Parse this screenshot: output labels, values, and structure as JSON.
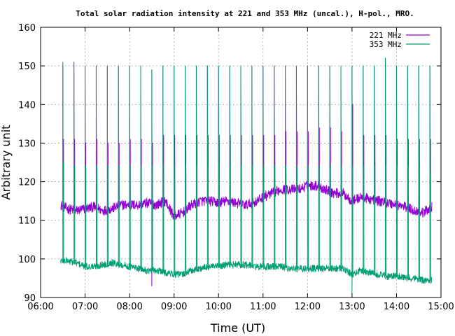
{
  "chart_data": {
    "type": "line",
    "title": "Total solar radiation intensity at 221 and 353 MHz (uncal.), H-pol., MRO.",
    "xlabel": "Time (UT)",
    "ylabel": "Arbitrary unit",
    "x_ticks": [
      "06:00",
      "07:00",
      "08:00",
      "09:00",
      "10:00",
      "11:00",
      "12:00",
      "13:00",
      "14:00",
      "15:00"
    ],
    "y_ticks": [
      90,
      100,
      110,
      120,
      130,
      140,
      150,
      160
    ],
    "xlim_hours": [
      6.0,
      15.0
    ],
    "ylim": [
      90,
      160
    ],
    "grid": true,
    "legend_position": "top-right",
    "series": [
      {
        "name": "221 MHz",
        "color": "#9400d3",
        "baseline": [
          [
            6.45,
            114
          ],
          [
            6.6,
            113
          ],
          [
            6.8,
            112.5
          ],
          [
            7.0,
            113
          ],
          [
            7.2,
            113.5
          ],
          [
            7.4,
            112.5
          ],
          [
            7.6,
            113
          ],
          [
            7.8,
            114
          ],
          [
            8.0,
            114
          ],
          [
            8.2,
            114
          ],
          [
            8.4,
            114.5
          ],
          [
            8.6,
            114
          ],
          [
            8.8,
            115
          ],
          [
            9.0,
            111
          ],
          [
            9.2,
            112
          ],
          [
            9.4,
            114
          ],
          [
            9.6,
            115
          ],
          [
            9.8,
            115
          ],
          [
            10.0,
            114.5
          ],
          [
            10.2,
            115
          ],
          [
            10.4,
            114.5
          ],
          [
            10.6,
            114
          ],
          [
            10.8,
            114.5
          ],
          [
            11.0,
            116
          ],
          [
            11.2,
            117
          ],
          [
            11.4,
            118
          ],
          [
            11.6,
            118
          ],
          [
            11.8,
            118
          ],
          [
            12.0,
            119
          ],
          [
            12.2,
            119
          ],
          [
            12.4,
            118
          ],
          [
            12.6,
            117
          ],
          [
            12.8,
            117
          ],
          [
            13.0,
            115
          ],
          [
            13.2,
            116
          ],
          [
            13.4,
            115.5
          ],
          [
            13.6,
            115
          ],
          [
            13.8,
            114.5
          ],
          [
            14.0,
            114
          ],
          [
            14.2,
            113.5
          ],
          [
            14.4,
            112.5
          ],
          [
            14.6,
            112
          ],
          [
            14.8,
            113.5
          ]
        ],
        "calibration_pulses": [
          {
            "t": 6.5,
            "high": 131,
            "low": 125,
            "peak": 150
          },
          {
            "t": 6.75,
            "high": 131,
            "low": 124,
            "peak": 151
          },
          {
            "t": 7.0,
            "high": 130,
            "low": 124,
            "peak": 150
          },
          {
            "t": 7.25,
            "high": 131,
            "low": 124,
            "peak": 150
          },
          {
            "t": 7.5,
            "high": 130,
            "low": 124,
            "peak": 150
          },
          {
            "t": 7.75,
            "high": 130,
            "low": 124,
            "peak": 150
          },
          {
            "t": 8.0,
            "high": 131,
            "low": 124,
            "peak": 150
          },
          {
            "t": 8.25,
            "high": 131,
            "low": 124,
            "peak": 150
          },
          {
            "t": 8.5,
            "high": 130,
            "low": 122,
            "peak": 149
          },
          {
            "t": 8.75,
            "high": 132,
            "low": 124,
            "peak": 150
          },
          {
            "t": 9.0,
            "high": 132,
            "low": 124,
            "peak": 150
          },
          {
            "t": 9.25,
            "high": 132,
            "low": 124,
            "peak": 150
          },
          {
            "t": 9.5,
            "high": 132,
            "low": 124,
            "peak": 150
          },
          {
            "t": 9.75,
            "high": 132,
            "low": 124,
            "peak": 150
          },
          {
            "t": 10.0,
            "high": 132,
            "low": 124,
            "peak": 150
          },
          {
            "t": 10.25,
            "high": 132,
            "low": 124,
            "peak": 150
          },
          {
            "t": 10.5,
            "high": 132,
            "low": 124,
            "peak": 150
          },
          {
            "t": 10.75,
            "high": 132,
            "low": 124,
            "peak": 150
          },
          {
            "t": 11.0,
            "high": 132,
            "low": 124,
            "peak": 150
          },
          {
            "t": 11.25,
            "high": 132,
            "low": 124,
            "peak": 150
          },
          {
            "t": 11.5,
            "high": 133,
            "low": 124,
            "peak": 150
          },
          {
            "t": 11.75,
            "high": 133,
            "low": 124,
            "peak": 150
          },
          {
            "t": 12.0,
            "high": 133,
            "low": 124,
            "peak": 150
          },
          {
            "t": 12.25,
            "high": 134,
            "low": 124,
            "peak": 150
          },
          {
            "t": 12.5,
            "high": 134,
            "low": 124,
            "peak": 150
          },
          {
            "t": 12.75,
            "high": 133,
            "low": 124,
            "peak": 150
          },
          {
            "t": 13.0,
            "high": 140,
            "low": 124,
            "peak": 150
          },
          {
            "t": 13.25,
            "high": 132,
            "low": 124,
            "peak": 150
          },
          {
            "t": 13.5,
            "high": 132,
            "low": 124,
            "peak": 150
          },
          {
            "t": 13.75,
            "high": 132,
            "low": 124,
            "peak": 152
          },
          {
            "t": 14.0,
            "high": 131,
            "low": 124,
            "peak": 150
          },
          {
            "t": 14.25,
            "high": 131,
            "low": 124,
            "peak": 150
          },
          {
            "t": 14.5,
            "high": 131,
            "low": 124,
            "peak": 150
          },
          {
            "t": 14.75,
            "high": 131,
            "low": 122,
            "peak": 150
          }
        ],
        "dips": [
          [
            8.5,
            93
          ]
        ]
      },
      {
        "name": "353 MHz",
        "color": "#009e73",
        "baseline": [
          [
            6.45,
            99.5
          ],
          [
            6.6,
            99.5
          ],
          [
            6.8,
            99
          ],
          [
            7.0,
            98
          ],
          [
            7.2,
            98
          ],
          [
            7.4,
            98.5
          ],
          [
            7.6,
            99
          ],
          [
            7.8,
            98.5
          ],
          [
            8.0,
            98
          ],
          [
            8.2,
            97.5
          ],
          [
            8.4,
            97
          ],
          [
            8.6,
            97
          ],
          [
            8.8,
            96.5
          ],
          [
            9.0,
            96
          ],
          [
            9.2,
            96
          ],
          [
            9.4,
            97
          ],
          [
            9.6,
            97.5
          ],
          [
            9.8,
            98
          ],
          [
            10.0,
            98
          ],
          [
            10.2,
            98.5
          ],
          [
            10.4,
            98.5
          ],
          [
            10.6,
            98.5
          ],
          [
            10.8,
            98
          ],
          [
            11.0,
            98
          ],
          [
            11.2,
            98
          ],
          [
            11.4,
            98
          ],
          [
            11.6,
            97.5
          ],
          [
            11.8,
            97.5
          ],
          [
            12.0,
            97.5
          ],
          [
            12.2,
            97.5
          ],
          [
            12.4,
            97.5
          ],
          [
            12.6,
            97.5
          ],
          [
            12.8,
            97.5
          ],
          [
            13.0,
            96
          ],
          [
            13.2,
            97
          ],
          [
            13.4,
            96.5
          ],
          [
            13.6,
            96
          ],
          [
            13.8,
            95.5
          ],
          [
            14.0,
            95.5
          ],
          [
            14.2,
            95
          ],
          [
            14.4,
            95
          ],
          [
            14.6,
            94.5
          ],
          [
            14.8,
            94.5
          ]
        ],
        "calibration_pulses": [
          {
            "t": 6.5,
            "high": 125,
            "peak": 151
          },
          {
            "t": 6.75,
            "high": 124,
            "peak": 150
          },
          {
            "t": 7.0,
            "high": 124,
            "peak": 150
          },
          {
            "t": 7.25,
            "high": 124,
            "peak": 150
          },
          {
            "t": 7.5,
            "high": 124,
            "peak": 150
          },
          {
            "t": 7.75,
            "high": 124,
            "peak": 150
          },
          {
            "t": 8.0,
            "high": 124,
            "peak": 150
          },
          {
            "t": 8.25,
            "high": 124,
            "peak": 150
          },
          {
            "t": 8.5,
            "high": 124,
            "peak": 149
          },
          {
            "t": 8.75,
            "high": 124,
            "peak": 150
          },
          {
            "t": 9.0,
            "high": 124,
            "peak": 150
          },
          {
            "t": 9.25,
            "high": 124,
            "peak": 150
          },
          {
            "t": 9.5,
            "high": 124,
            "peak": 150
          },
          {
            "t": 9.75,
            "high": 124,
            "peak": 150
          },
          {
            "t": 10.0,
            "high": 124,
            "peak": 150
          },
          {
            "t": 10.25,
            "high": 124,
            "peak": 150
          },
          {
            "t": 10.5,
            "high": 124,
            "peak": 150
          },
          {
            "t": 10.75,
            "high": 124,
            "peak": 150
          },
          {
            "t": 11.0,
            "high": 124,
            "peak": 150
          },
          {
            "t": 11.25,
            "high": 124,
            "peak": 150
          },
          {
            "t": 11.5,
            "high": 124,
            "peak": 150
          },
          {
            "t": 11.75,
            "high": 124,
            "peak": 150
          },
          {
            "t": 12.0,
            "high": 124,
            "peak": 150
          },
          {
            "t": 12.25,
            "high": 124,
            "peak": 150
          },
          {
            "t": 12.5,
            "high": 124,
            "peak": 150
          },
          {
            "t": 12.75,
            "high": 124,
            "peak": 150
          },
          {
            "t": 13.0,
            "high": 124,
            "peak": 150
          },
          {
            "t": 13.25,
            "high": 124,
            "peak": 150
          },
          {
            "t": 13.5,
            "high": 124,
            "peak": 150
          },
          {
            "t": 13.75,
            "high": 124,
            "peak": 152
          },
          {
            "t": 14.0,
            "high": 124,
            "peak": 150
          },
          {
            "t": 14.25,
            "high": 124,
            "peak": 150
          },
          {
            "t": 14.5,
            "high": 124,
            "peak": 150
          },
          {
            "t": 14.75,
            "high": 122,
            "peak": 150
          }
        ],
        "dips": [
          [
            13.0,
            91
          ]
        ]
      }
    ]
  }
}
